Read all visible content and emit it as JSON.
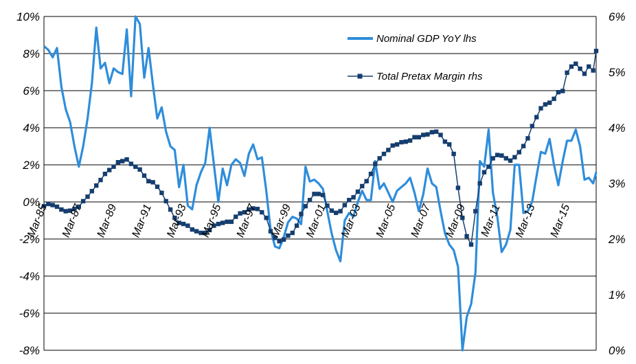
{
  "chart_data": {
    "type": "line",
    "y_left": {
      "ticks": [
        "10%",
        "8%",
        "6%",
        "4%",
        "2%",
        "0%",
        "-2%",
        "-4%",
        "-6%",
        "-8%"
      ],
      "range": [
        -8,
        10
      ]
    },
    "y_right": {
      "ticks": [
        "6%",
        "5%",
        "4%",
        "3%",
        "2%",
        "1%",
        "0%"
      ],
      "range": [
        0,
        6
      ]
    },
    "x_range": [
      1985.17,
      2016.84
    ],
    "x_ticks": [
      {
        "label": "Mar-85",
        "x": 1985.17
      },
      {
        "label": "Mar-87",
        "x": 1987.17
      },
      {
        "label": "Mar-89",
        "x": 1989.17
      },
      {
        "label": "Mar-91",
        "x": 1991.17
      },
      {
        "label": "Mar-93",
        "x": 1993.17
      },
      {
        "label": "Mar-95",
        "x": 1995.17
      },
      {
        "label": "Mar-97",
        "x": 1997.17
      },
      {
        "label": "Mar-99",
        "x": 1999.17
      },
      {
        "label": "Mar-01",
        "x": 2001.17
      },
      {
        "label": "Mar-03",
        "x": 2003.17
      },
      {
        "label": "Mar-05",
        "x": 2005.17
      },
      {
        "label": "Mar-07",
        "x": 2007.17
      },
      {
        "label": "Mar-09",
        "x": 2009.17
      },
      {
        "label": "Mar-11",
        "x": 2011.17
      },
      {
        "label": "Mar-13",
        "x": 2013.17
      },
      {
        "label": "Mar-15",
        "x": 2015.17
      }
    ],
    "legend_placement": "top-right",
    "grid": "horizontal",
    "colors": {
      "gdp": "#2E8DDB",
      "margin": "#153E6E",
      "grid": "#000000"
    },
    "series": [
      {
        "name": "Nominal GDP YoY lhs",
        "axis": "left",
        "x": [
          1985.17,
          1985.42,
          1985.67,
          1985.92,
          1986.17,
          1986.42,
          1986.67,
          1986.92,
          1987.17,
          1987.42,
          1987.67,
          1987.92,
          1988.17,
          1988.42,
          1988.67,
          1988.92,
          1989.17,
          1989.42,
          1989.67,
          1989.92,
          1990.17,
          1990.42,
          1990.67,
          1990.92,
          1991.17,
          1991.42,
          1991.67,
          1991.92,
          1992.17,
          1992.42,
          1992.67,
          1992.92,
          1993.17,
          1993.42,
          1993.67,
          1993.92,
          1994.17,
          1994.42,
          1994.67,
          1994.92,
          1995.17,
          1995.42,
          1995.67,
          1995.92,
          1996.17,
          1996.42,
          1996.67,
          1996.92,
          1997.17,
          1997.42,
          1997.67,
          1997.92,
          1998.17,
          1998.42,
          1998.67,
          1998.92,
          1999.17,
          1999.42,
          1999.67,
          1999.92,
          2000.17,
          2000.42,
          2000.67,
          2000.92,
          2001.17,
          2001.42,
          2001.67,
          2001.92,
          2002.17,
          2002.42,
          2002.67,
          2002.92,
          2003.17,
          2003.42,
          2003.67,
          2003.92,
          2004.17,
          2004.42,
          2004.67,
          2004.92,
          2005.17,
          2005.42,
          2005.67,
          2005.92,
          2006.17,
          2006.42,
          2006.67,
          2006.92,
          2007.17,
          2007.42,
          2007.67,
          2007.92,
          2008.17,
          2008.42,
          2008.67,
          2008.92,
          2009.17,
          2009.42,
          2009.67,
          2009.92,
          2010.17,
          2010.42,
          2010.67,
          2010.92,
          2011.17,
          2011.42,
          2011.67,
          2011.92,
          2012.17,
          2012.42,
          2012.67,
          2012.92,
          2013.17,
          2013.42,
          2013.67,
          2013.92,
          2014.17,
          2014.42,
          2014.67,
          2014.92,
          2015.17,
          2015.42,
          2015.67,
          2015.92,
          2016.17,
          2016.42,
          2016.67,
          2016.84
        ],
        "values": [
          8.4,
          8.2,
          7.8,
          8.3,
          6.2,
          5.0,
          4.3,
          3.0,
          1.9,
          3.0,
          4.5,
          6.4,
          9.4,
          7.2,
          7.5,
          6.4,
          7.2,
          7.0,
          6.9,
          9.3,
          5.7,
          10.0,
          9.6,
          6.7,
          8.3,
          6.3,
          4.5,
          5.1,
          3.8,
          3.0,
          2.8,
          0.8,
          2.0,
          -0.2,
          -0.4,
          0.9,
          1.6,
          2.1,
          4.0,
          2.0,
          0.0,
          1.8,
          0.9,
          2.0,
          2.3,
          2.1,
          1.4,
          2.6,
          3.1,
          2.3,
          2.4,
          0.6,
          -1.5,
          -2.4,
          -2.5,
          -1.9,
          -1.1,
          -0.8,
          -0.9,
          -1.2,
          1.9,
          1.1,
          1.2,
          1.0,
          0.7,
          -0.5,
          -1.7,
          -2.6,
          -3.2,
          -1.0,
          -0.6,
          -0.8,
          0.0,
          0.6,
          0.1,
          0.1,
          2.2,
          0.7,
          1.0,
          0.5,
          0.0,
          0.6,
          0.8,
          1.0,
          1.3,
          0.5,
          -0.5,
          0.4,
          1.8,
          1.0,
          0.8,
          -0.5,
          -1.7,
          -2.3,
          -2.6,
          -3.5,
          -8.0,
          -6.2,
          -5.5,
          -3.8,
          2.2,
          1.9,
          3.9,
          0.5,
          -0.8,
          -2.7,
          -2.3,
          -1.5,
          2.0,
          2.0,
          -0.6,
          -0.5,
          0.0,
          1.4,
          2.7,
          2.6,
          3.4,
          2.0,
          0.9,
          2.2,
          3.3,
          3.3,
          3.9,
          3.0,
          1.2,
          1.3,
          1.0,
          1.6
        ]
      },
      {
        "name": "Total Pretax Margin rhs",
        "axis": "right",
        "x": [
          1985.17,
          1985.42,
          1985.67,
          1985.92,
          1986.17,
          1986.42,
          1986.67,
          1986.92,
          1987.17,
          1987.42,
          1987.67,
          1987.92,
          1988.17,
          1988.42,
          1988.67,
          1988.92,
          1989.17,
          1989.42,
          1989.67,
          1989.92,
          1990.17,
          1990.42,
          1990.67,
          1990.92,
          1991.17,
          1991.42,
          1991.67,
          1991.92,
          1992.17,
          1992.42,
          1992.67,
          1992.92,
          1993.17,
          1993.42,
          1993.67,
          1993.92,
          1994.17,
          1994.42,
          1994.67,
          1994.92,
          1995.17,
          1995.42,
          1995.67,
          1995.92,
          1996.17,
          1996.42,
          1996.67,
          1996.92,
          1997.17,
          1997.42,
          1997.67,
          1997.92,
          1998.17,
          1998.42,
          1998.67,
          1998.92,
          1999.17,
          1999.42,
          1999.67,
          1999.92,
          2000.17,
          2000.42,
          2000.67,
          2000.92,
          2001.17,
          2001.42,
          2001.67,
          2001.92,
          2002.17,
          2002.42,
          2002.67,
          2002.92,
          2003.17,
          2003.42,
          2003.67,
          2003.92,
          2004.17,
          2004.42,
          2004.67,
          2004.92,
          2005.17,
          2005.42,
          2005.67,
          2005.92,
          2006.17,
          2006.42,
          2006.67,
          2006.92,
          2007.17,
          2007.42,
          2007.67,
          2007.92,
          2008.17,
          2008.42,
          2008.67,
          2008.92,
          2009.17,
          2009.42,
          2009.67,
          2009.92,
          2010.17,
          2010.42,
          2010.67,
          2010.92,
          2011.17,
          2011.42,
          2011.67,
          2011.92,
          2012.17,
          2012.42,
          2012.67,
          2012.92,
          2013.17,
          2013.42,
          2013.67,
          2013.92,
          2014.17,
          2014.42,
          2014.67,
          2014.92,
          2015.17,
          2015.42,
          2015.67,
          2015.92,
          2016.17,
          2016.42,
          2016.67,
          2016.84
        ],
        "values": [
          2.59,
          2.63,
          2.61,
          2.58,
          2.53,
          2.5,
          2.51,
          2.54,
          2.58,
          2.68,
          2.76,
          2.86,
          2.96,
          3.06,
          3.17,
          3.24,
          3.3,
          3.38,
          3.4,
          3.43,
          3.35,
          3.3,
          3.25,
          3.14,
          3.04,
          3.02,
          2.94,
          2.83,
          2.68,
          2.53,
          2.38,
          2.29,
          2.27,
          2.24,
          2.17,
          2.14,
          2.11,
          2.11,
          2.16,
          2.24,
          2.27,
          2.29,
          2.31,
          2.31,
          2.4,
          2.46,
          2.48,
          2.53,
          2.55,
          2.54,
          2.48,
          2.38,
          2.14,
          2.02,
          1.96,
          1.99,
          2.06,
          2.11,
          2.24,
          2.45,
          2.59,
          2.7,
          2.81,
          2.81,
          2.79,
          2.6,
          2.51,
          2.47,
          2.5,
          2.61,
          2.7,
          2.75,
          2.85,
          2.95,
          3.04,
          3.17,
          3.35,
          3.45,
          3.53,
          3.6,
          3.68,
          3.7,
          3.74,
          3.75,
          3.77,
          3.83,
          3.83,
          3.87,
          3.88,
          3.92,
          3.93,
          3.87,
          3.75,
          3.7,
          3.53,
          2.92,
          2.38,
          2.05,
          1.9,
          2.5,
          3.0,
          3.2,
          3.3,
          3.45,
          3.51,
          3.5,
          3.45,
          3.41,
          3.47,
          3.56,
          3.67,
          3.81,
          4.03,
          4.19,
          4.35,
          4.42,
          4.45,
          4.52,
          4.64,
          4.66,
          4.99,
          5.1,
          5.15,
          5.06,
          4.97,
          5.1,
          5.03,
          5.38
        ]
      }
    ]
  }
}
